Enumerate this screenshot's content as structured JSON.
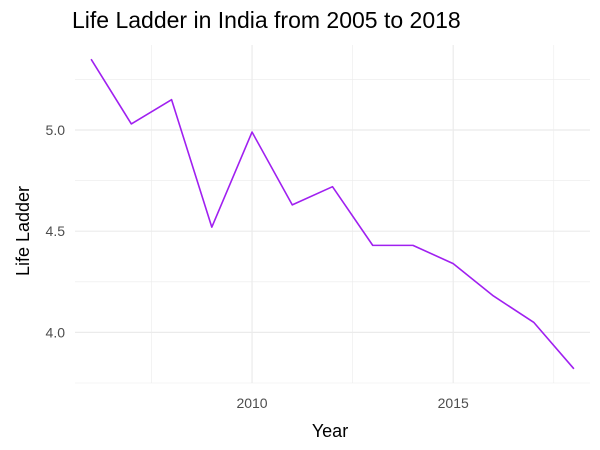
{
  "chart_data": {
    "type": "line",
    "title": "Life Ladder in India from 2005 to 2018",
    "xlabel": "Year",
    "ylabel": "Life Ladder",
    "x": [
      2006,
      2007,
      2008,
      2009,
      2010,
      2011,
      2012,
      2013,
      2014,
      2015,
      2016,
      2017,
      2018
    ],
    "series": [
      {
        "values": [
          5.35,
          5.03,
          5.15,
          4.52,
          4.99,
          4.63,
          4.72,
          4.43,
          4.43,
          4.34,
          4.18,
          4.05,
          3.82
        ],
        "color": "#a020f0"
      }
    ],
    "xlim": [
      2005.6,
      2018.4
    ],
    "ylim": [
      3.75,
      5.42
    ],
    "xticks": [
      2010,
      2015
    ],
    "xtick_labels": [
      "2010",
      "2015"
    ],
    "yticks": [
      4.0,
      4.5,
      5.0
    ],
    "ytick_labels": [
      "4.0",
      "4.5",
      "5.0"
    ],
    "grid": true,
    "legend": "none"
  }
}
